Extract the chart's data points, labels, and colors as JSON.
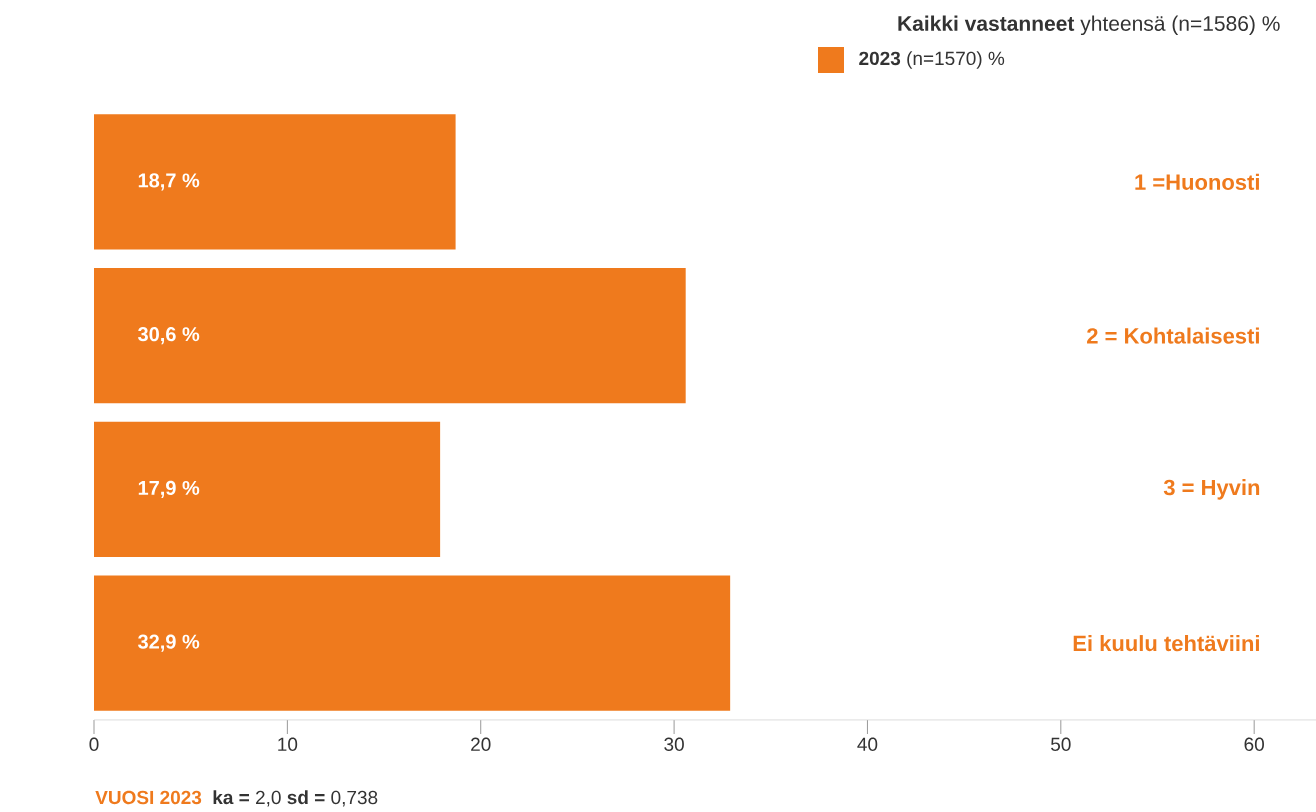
{
  "chart_data": {
    "type": "bar",
    "orientation": "horizontal",
    "legend_title": "**Kaikki vastanneet** yhteensä (n=1586) %",
    "categories": [
      "1 =Huonosti",
      "2 = Kohtalaisesti",
      "3 = Hyvin",
      "Ei kuulu tehtäviini"
    ],
    "series": [
      {
        "name": "**2023** (n=1570) %",
        "color": "#ef7a1d",
        "values": [
          18.7,
          30.6,
          17.9,
          32.9
        ]
      }
    ],
    "value_labels": [
      "18,7 %",
      "30,6 %",
      "17,9 %",
      "32,9 %"
    ],
    "xlim": [
      0,
      63.2
    ],
    "xticks": [
      0,
      10,
      20,
      30,
      40,
      50,
      60
    ],
    "grid": false,
    "legend": "top right",
    "annotations": [
      "VUOSI 2023",
      "**ka =** 2,0 **sd =** 0,738"
    ]
  }
}
